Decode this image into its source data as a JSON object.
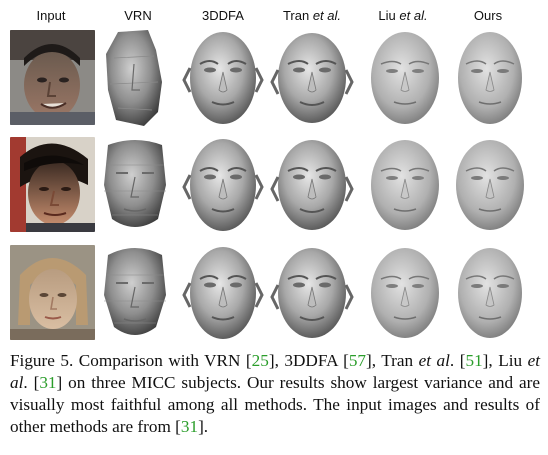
{
  "figure": {
    "columns": [
      {
        "key": "input",
        "label": "Input"
      },
      {
        "key": "vrn",
        "label": "VRN"
      },
      {
        "key": "3ddfa",
        "label": "3DDFA"
      },
      {
        "key": "tran",
        "label_plain": "Tran ",
        "label_em": "et al."
      },
      {
        "key": "liu",
        "label_plain": "Liu ",
        "label_em": "et al."
      },
      {
        "key": "ours",
        "label": "Ours"
      }
    ],
    "rows": [
      "subject-1",
      "subject-2",
      "subject-3"
    ],
    "colors": {
      "mesh_light": "#d9d9d9",
      "mesh_mid": "#9a9a9a",
      "mesh_dark": "#505050",
      "citation_green": "#2a9d2a"
    }
  },
  "caption": {
    "p1": "Figure 5. Comparison with VRN [",
    "r1": "25",
    "p2": "], 3DDFA [",
    "r2": "57",
    "p3": "], Tran ",
    "em1": "et al",
    "p4": ". [",
    "r3": "51",
    "p5": "], Liu ",
    "em2": "et al",
    "p6": ". [",
    "r4": "31",
    "p7": "] on three MICC subjects. Our results show largest variance and are visually most faithful among all methods. The input images and results of other methods are from [",
    "r5": "31",
    "p8": "]."
  }
}
